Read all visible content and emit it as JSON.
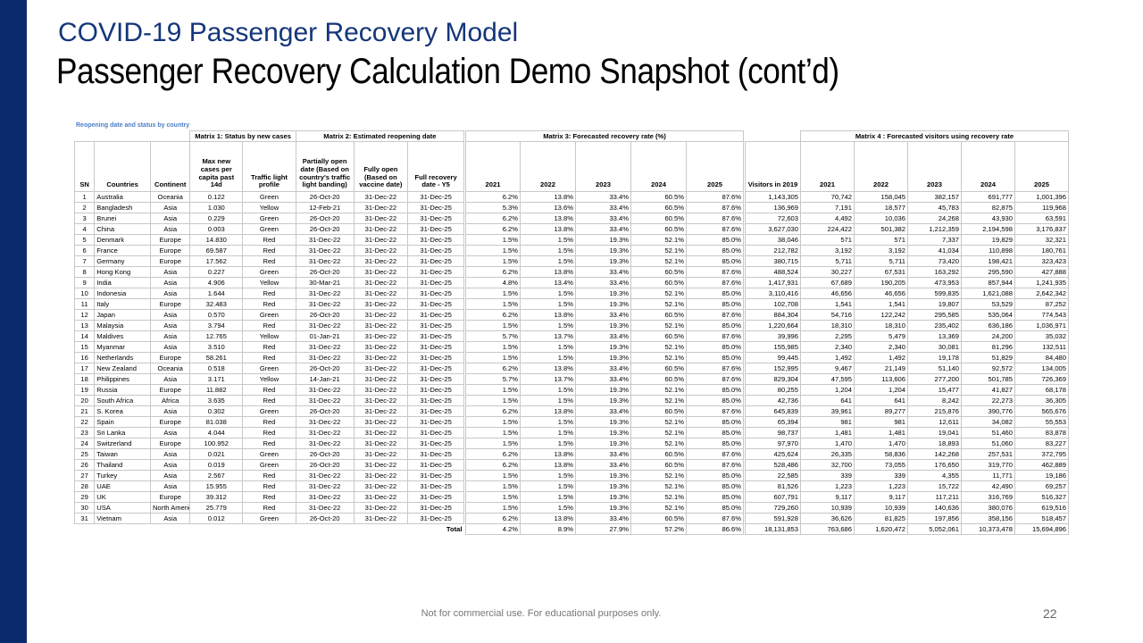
{
  "slide": {
    "title": "COVID-19 Passenger Recovery Model",
    "subtitle": "Passenger Recovery Calculation Demo Snapshot (cont’d)",
    "section_label": "Reopening date and status by country",
    "footer": "Not for commercial use. For educational purposes only.",
    "page_number": "22"
  },
  "matrix_titles": {
    "m1": "Matrix 1: Status by new cases",
    "m2": "Matrix 2: Estimated reopening date",
    "m3": "Matrix 3: Forecasted recovery rate (%)",
    "m4": "Matrix 4 : Forecasted visitors using recovery rate"
  },
  "headers1": [
    "SN",
    "Countries",
    "Continent",
    "Max new cases per capita past 14d",
    "Traffic light profile",
    "Partially open date (Based on country's traffic light banding)",
    "Fully open (Based on vaccine date)",
    "Full recovery date - Y5"
  ],
  "headers2": [
    "2021",
    "2022",
    "2023",
    "2024",
    "2025"
  ],
  "headers3": [
    "Visitors in 2019",
    "2021",
    "2022",
    "2023",
    "2024",
    "2025"
  ],
  "rows": [
    [
      "1",
      "Australia",
      "Oceania",
      "0.122",
      "Green",
      "26-Oct-20",
      "31-Dec-22",
      "31-Dec-25",
      "6.2%",
      "13.8%",
      "33.4%",
      "60.5%",
      "87.6%",
      "1,143,305",
      "70,742",
      "158,045",
      "382,157",
      "691,777",
      "1,001,396"
    ],
    [
      "2",
      "Bangladesh",
      "Asia",
      "1.030",
      "Yellow",
      "12-Feb-21",
      "31-Dec-22",
      "31-Dec-25",
      "5.3%",
      "13.6%",
      "33.4%",
      "60.5%",
      "87.6%",
      "136,969",
      "7,191",
      "18,577",
      "45,783",
      "82,875",
      "119,968"
    ],
    [
      "3",
      "Brunei",
      "Asia",
      "0.229",
      "Green",
      "26-Oct-20",
      "31-Dec-22",
      "31-Dec-25",
      "6.2%",
      "13.8%",
      "33.4%",
      "60.5%",
      "87.6%",
      "72,603",
      "4,492",
      "10,036",
      "24,268",
      "43,930",
      "63,591"
    ],
    [
      "4",
      "China",
      "Asia",
      "0.003",
      "Green",
      "26-Oct-20",
      "31-Dec-22",
      "31-Dec-25",
      "6.2%",
      "13.8%",
      "33.4%",
      "60.5%",
      "87.6%",
      "3,627,030",
      "224,422",
      "501,382",
      "1,212,359",
      "2,194,598",
      "3,176,837"
    ],
    [
      "5",
      "Denmark",
      "Europe",
      "14.830",
      "Red",
      "31-Dec-22",
      "31-Dec-22",
      "31-Dec-25",
      "1.5%",
      "1.5%",
      "19.3%",
      "52.1%",
      "85.0%",
      "38,046",
      "571",
      "571",
      "7,337",
      "19,829",
      "32,321"
    ],
    [
      "6",
      "France",
      "Europe",
      "69.587",
      "Red",
      "31-Dec-22",
      "31-Dec-22",
      "31-Dec-25",
      "1.5%",
      "1.5%",
      "19.3%",
      "52.1%",
      "85.0%",
      "212,782",
      "3,192",
      "3,192",
      "41,034",
      "110,898",
      "180,761"
    ],
    [
      "7",
      "Germany",
      "Europe",
      "17.562",
      "Red",
      "31-Dec-22",
      "31-Dec-22",
      "31-Dec-25",
      "1.5%",
      "1.5%",
      "19.3%",
      "52.1%",
      "85.0%",
      "380,715",
      "5,711",
      "5,711",
      "73,420",
      "198,421",
      "323,423"
    ],
    [
      "8",
      "Hong Kong",
      "Asia",
      "0.227",
      "Green",
      "26-Oct-20",
      "31-Dec-22",
      "31-Dec-25",
      "6.2%",
      "13.8%",
      "33.4%",
      "60.5%",
      "87.6%",
      "488,524",
      "30,227",
      "67,531",
      "163,292",
      "295,590",
      "427,888"
    ],
    [
      "9",
      "India",
      "Asia",
      "4.906",
      "Yellow",
      "30-Mar-21",
      "31-Dec-22",
      "31-Dec-25",
      "4.8%",
      "13.4%",
      "33.4%",
      "60.5%",
      "87.6%",
      "1,417,931",
      "67,689",
      "190,205",
      "473,953",
      "857,944",
      "1,241,935"
    ],
    [
      "10",
      "Indonesia",
      "Asia",
      "1.644",
      "Red",
      "31-Dec-22",
      "31-Dec-22",
      "31-Dec-25",
      "1.5%",
      "1.5%",
      "19.3%",
      "52.1%",
      "85.0%",
      "3,110,416",
      "46,656",
      "46,656",
      "599,835",
      "1,621,088",
      "2,642,342"
    ],
    [
      "11",
      "Italy",
      "Europe",
      "32.483",
      "Red",
      "31-Dec-22",
      "31-Dec-22",
      "31-Dec-25",
      "1.5%",
      "1.5%",
      "19.3%",
      "52.1%",
      "85.0%",
      "102,708",
      "1,541",
      "1,541",
      "19,807",
      "53,529",
      "87,252"
    ],
    [
      "12",
      "Japan",
      "Asia",
      "0.570",
      "Green",
      "26-Oct-20",
      "31-Dec-22",
      "31-Dec-25",
      "6.2%",
      "13.8%",
      "33.4%",
      "60.5%",
      "87.6%",
      "884,304",
      "54,716",
      "122,242",
      "295,585",
      "535,064",
      "774,543"
    ],
    [
      "13",
      "Malaysia",
      "Asia",
      "3.794",
      "Red",
      "31-Dec-22",
      "31-Dec-22",
      "31-Dec-25",
      "1.5%",
      "1.5%",
      "19.3%",
      "52.1%",
      "85.0%",
      "1,220,664",
      "18,310",
      "18,310",
      "235,402",
      "636,186",
      "1,036,971"
    ],
    [
      "14",
      "Maldives",
      "Asia",
      "12.765",
      "Yellow",
      "01-Jan-21",
      "31-Dec-22",
      "31-Dec-25",
      "5.7%",
      "13.7%",
      "33.4%",
      "60.5%",
      "87.6%",
      "39,996",
      "2,295",
      "5,479",
      "13,369",
      "24,200",
      "35,032"
    ],
    [
      "15",
      "Myanmar",
      "Asia",
      "3.510",
      "Red",
      "31-Dec-22",
      "31-Dec-22",
      "31-Dec-25",
      "1.5%",
      "1.5%",
      "19.3%",
      "52.1%",
      "85.0%",
      "155,985",
      "2,340",
      "2,340",
      "30,081",
      "81,296",
      "132,511"
    ],
    [
      "16",
      "Netherlands",
      "Europe",
      "58.261",
      "Red",
      "31-Dec-22",
      "31-Dec-22",
      "31-Dec-25",
      "1.5%",
      "1.5%",
      "19.3%",
      "52.1%",
      "85.0%",
      "99,445",
      "1,492",
      "1,492",
      "19,178",
      "51,829",
      "84,480"
    ],
    [
      "17",
      "New Zealand",
      "Oceania",
      "0.518",
      "Green",
      "26-Oct-20",
      "31-Dec-22",
      "31-Dec-25",
      "6.2%",
      "13.8%",
      "33.4%",
      "60.5%",
      "87.6%",
      "152,995",
      "9,467",
      "21,149",
      "51,140",
      "92,572",
      "134,005"
    ],
    [
      "18",
      "Philippines",
      "Asia",
      "3.171",
      "Yellow",
      "14-Jan-21",
      "31-Dec-22",
      "31-Dec-25",
      "5.7%",
      "13.7%",
      "33.4%",
      "60.5%",
      "87.6%",
      "829,304",
      "47,595",
      "113,606",
      "277,200",
      "501,785",
      "726,369"
    ],
    [
      "19",
      "Russia",
      "Europe",
      "11.882",
      "Red",
      "31-Dec-22",
      "31-Dec-22",
      "31-Dec-25",
      "1.5%",
      "1.5%",
      "19.3%",
      "52.1%",
      "85.0%",
      "80,255",
      "1,204",
      "1,204",
      "15,477",
      "41,827",
      "68,178"
    ],
    [
      "20",
      "South Africa",
      "Africa",
      "3.635",
      "Red",
      "31-Dec-22",
      "31-Dec-22",
      "31-Dec-25",
      "1.5%",
      "1.5%",
      "19.3%",
      "52.1%",
      "85.0%",
      "42,736",
      "641",
      "641",
      "8,242",
      "22,273",
      "36,305"
    ],
    [
      "21",
      "S. Korea",
      "Asia",
      "0.302",
      "Green",
      "26-Oct-20",
      "31-Dec-22",
      "31-Dec-25",
      "6.2%",
      "13.8%",
      "33.4%",
      "60.5%",
      "87.6%",
      "645,839",
      "39,961",
      "89,277",
      "215,876",
      "390,776",
      "565,676"
    ],
    [
      "22",
      "Spain",
      "Europe",
      "81.038",
      "Red",
      "31-Dec-22",
      "31-Dec-22",
      "31-Dec-25",
      "1.5%",
      "1.5%",
      "19.3%",
      "52.1%",
      "85.0%",
      "65,394",
      "981",
      "981",
      "12,611",
      "34,082",
      "55,553"
    ],
    [
      "23",
      "Sri Lanka",
      "Asia",
      "4.044",
      "Red",
      "31-Dec-22",
      "31-Dec-22",
      "31-Dec-25",
      "1.5%",
      "1.5%",
      "19.3%",
      "52.1%",
      "85.0%",
      "98,737",
      "1,481",
      "1,481",
      "19,041",
      "51,460",
      "83,878"
    ],
    [
      "24",
      "Switzerland",
      "Europe",
      "100.952",
      "Red",
      "31-Dec-22",
      "31-Dec-22",
      "31-Dec-25",
      "1.5%",
      "1.5%",
      "19.3%",
      "52.1%",
      "85.0%",
      "97,970",
      "1,470",
      "1,470",
      "18,893",
      "51,060",
      "83,227"
    ],
    [
      "25",
      "Taiwan",
      "Asia",
      "0.021",
      "Green",
      "26-Oct-20",
      "31-Dec-22",
      "31-Dec-25",
      "6.2%",
      "13.8%",
      "33.4%",
      "60.5%",
      "87.6%",
      "425,624",
      "26,335",
      "58,836",
      "142,268",
      "257,531",
      "372,795"
    ],
    [
      "26",
      "Thailand",
      "Asia",
      "0.019",
      "Green",
      "26-Oct-20",
      "31-Dec-22",
      "31-Dec-25",
      "6.2%",
      "13.8%",
      "33.4%",
      "60.5%",
      "87.6%",
      "528,486",
      "32,700",
      "73,055",
      "176,650",
      "319,770",
      "462,889"
    ],
    [
      "27",
      "Turkey",
      "Asia",
      "2.567",
      "Red",
      "31-Dec-22",
      "31-Dec-22",
      "31-Dec-25",
      "1.5%",
      "1.5%",
      "19.3%",
      "52.1%",
      "85.0%",
      "22,585",
      "339",
      "339",
      "4,355",
      "11,771",
      "19,186"
    ],
    [
      "28",
      "UAE",
      "Asia",
      "15.955",
      "Red",
      "31-Dec-22",
      "31-Dec-22",
      "31-Dec-25",
      "1.5%",
      "1.5%",
      "19.3%",
      "52.1%",
      "85.0%",
      "81,526",
      "1,223",
      "1,223",
      "15,722",
      "42,490",
      "69,257"
    ],
    [
      "29",
      "UK",
      "Europe",
      "39.312",
      "Red",
      "31-Dec-22",
      "31-Dec-22",
      "31-Dec-25",
      "1.5%",
      "1.5%",
      "19.3%",
      "52.1%",
      "85.0%",
      "607,791",
      "9,117",
      "9,117",
      "117,211",
      "316,769",
      "516,327"
    ],
    [
      "30",
      "USA",
      "North America",
      "25.779",
      "Red",
      "31-Dec-22",
      "31-Dec-22",
      "31-Dec-25",
      "1.5%",
      "1.5%",
      "19.3%",
      "52.1%",
      "85.0%",
      "729,260",
      "10,939",
      "10,939",
      "140,636",
      "380,076",
      "619,516"
    ],
    [
      "31",
      "Vietnam",
      "Asia",
      "0.012",
      "Green",
      "26-Oct-20",
      "31-Dec-22",
      "31-Dec-25",
      "6.2%",
      "13.8%",
      "33.4%",
      "60.5%",
      "87.6%",
      "591,928",
      "36,626",
      "81,825",
      "197,856",
      "358,156",
      "518,457"
    ]
  ],
  "totals": {
    "label": "Total",
    "recovery": [
      "4.2%",
      "8.9%",
      "27.9%",
      "57.2%",
      "86.6%"
    ],
    "visitors": [
      "18,131,853",
      "763,686",
      "1,620,472",
      "5,052,061",
      "10,373,478",
      "15,694,896"
    ]
  }
}
